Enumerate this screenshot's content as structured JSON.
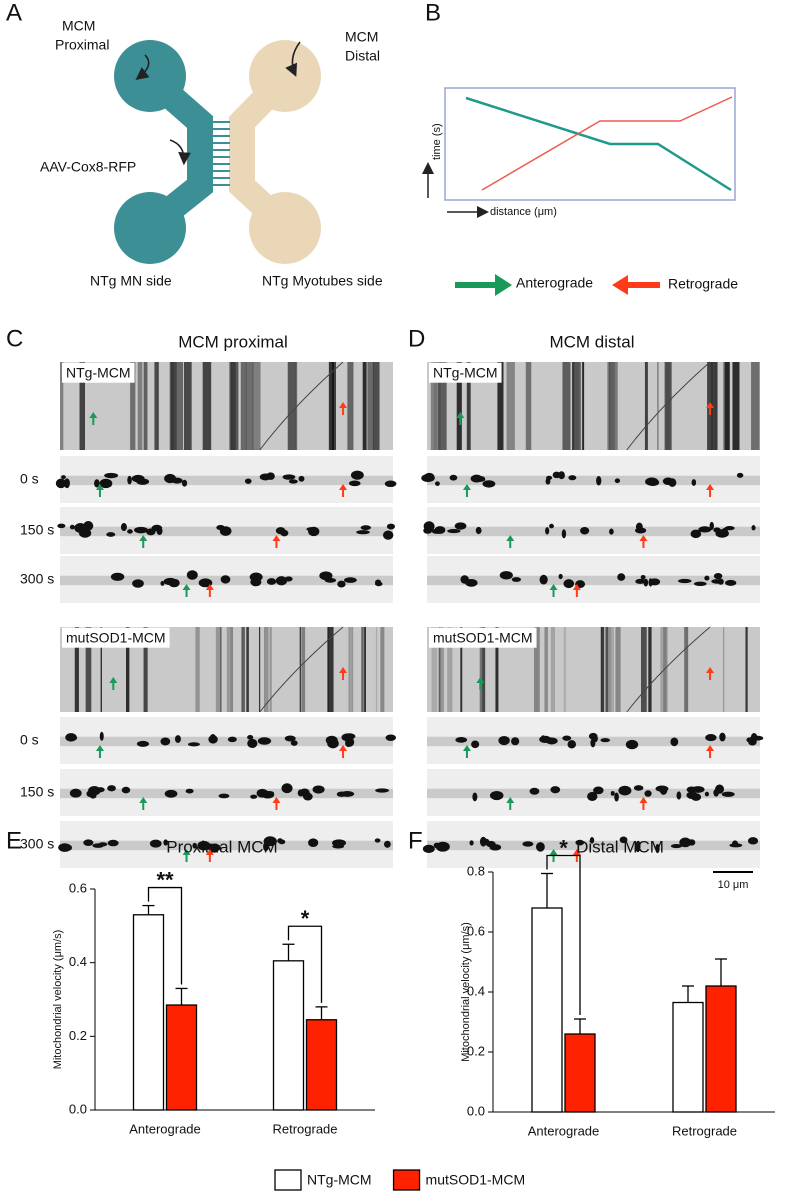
{
  "panel_labels": [
    "A",
    "B",
    "C",
    "D",
    "E",
    "F"
  ],
  "panel_a": {
    "proximal": [
      "MCM",
      "Proximal"
    ],
    "distal": [
      "MCM",
      "Distal"
    ],
    "virus": "AAV-Cox8-RFP",
    "mn_side": "NTg MN side",
    "myotubes_side": "NTg Myotubes side"
  },
  "panel_b": {
    "y_label": "time (s)",
    "x_label": "distance (μm)",
    "legend": [
      "Anterograde",
      "Retrograde"
    ]
  },
  "panel_c": {
    "title": "MCM proximal",
    "groups": [
      {
        "name": "NTg-MCM",
        "timepoints": [
          "0 s",
          "150 s",
          "300 s"
        ]
      },
      {
        "name": "mutSOD1-MCM",
        "timepoints": [
          "0 s",
          "150 s",
          "300 s"
        ]
      }
    ]
  },
  "panel_d": {
    "title": "MCM distal",
    "groups": [
      {
        "name": "NTg-MCM"
      },
      {
        "name": "mutSOD1-MCM"
      }
    ],
    "scale_bar": "10 μm"
  },
  "chart_data": [
    {
      "type": "bar",
      "title": "Proximal MCM",
      "y_label": "Mitochondrial velocity (μm/s)",
      "categories": [
        "Anterograde",
        "Retrograde"
      ],
      "series": [
        {
          "name": "NTg-MCM",
          "color": "#ffffff",
          "values": [
            0.53,
            0.405
          ],
          "errors": [
            0.025,
            0.045
          ]
        },
        {
          "name": "mutSOD1-MCM",
          "color": "#ff2200",
          "values": [
            0.285,
            0.245
          ],
          "errors": [
            0.045,
            0.035
          ]
        }
      ],
      "significance": [
        "**",
        "*"
      ],
      "ylim": [
        0,
        0.6
      ],
      "yticks": [
        {
          "value": 0,
          "label": "0.0"
        },
        0.2,
        0.4,
        0.6
      ]
    },
    {
      "type": "bar",
      "title": "Distal MCM",
      "y_label": "Mitochondrial velocity (μm/s)",
      "categories": [
        "Anterograde",
        "Retrograde"
      ],
      "series": [
        {
          "color": "#ffffff",
          "values": [
            0.68,
            0.365
          ],
          "errors": [
            0.115,
            0.055
          ]
        },
        {
          "color": "#ff2200",
          "values": [
            0.26,
            0.42
          ],
          "errors": [
            0.05,
            0.09
          ]
        }
      ],
      "significance": [
        "*",
        null
      ],
      "ylim": [
        0,
        0.8
      ],
      "yticks": [
        {
          "value": 0,
          "label": "0.0"
        },
        0.2,
        0.4,
        0.6,
        0.8
      ]
    }
  ]
}
